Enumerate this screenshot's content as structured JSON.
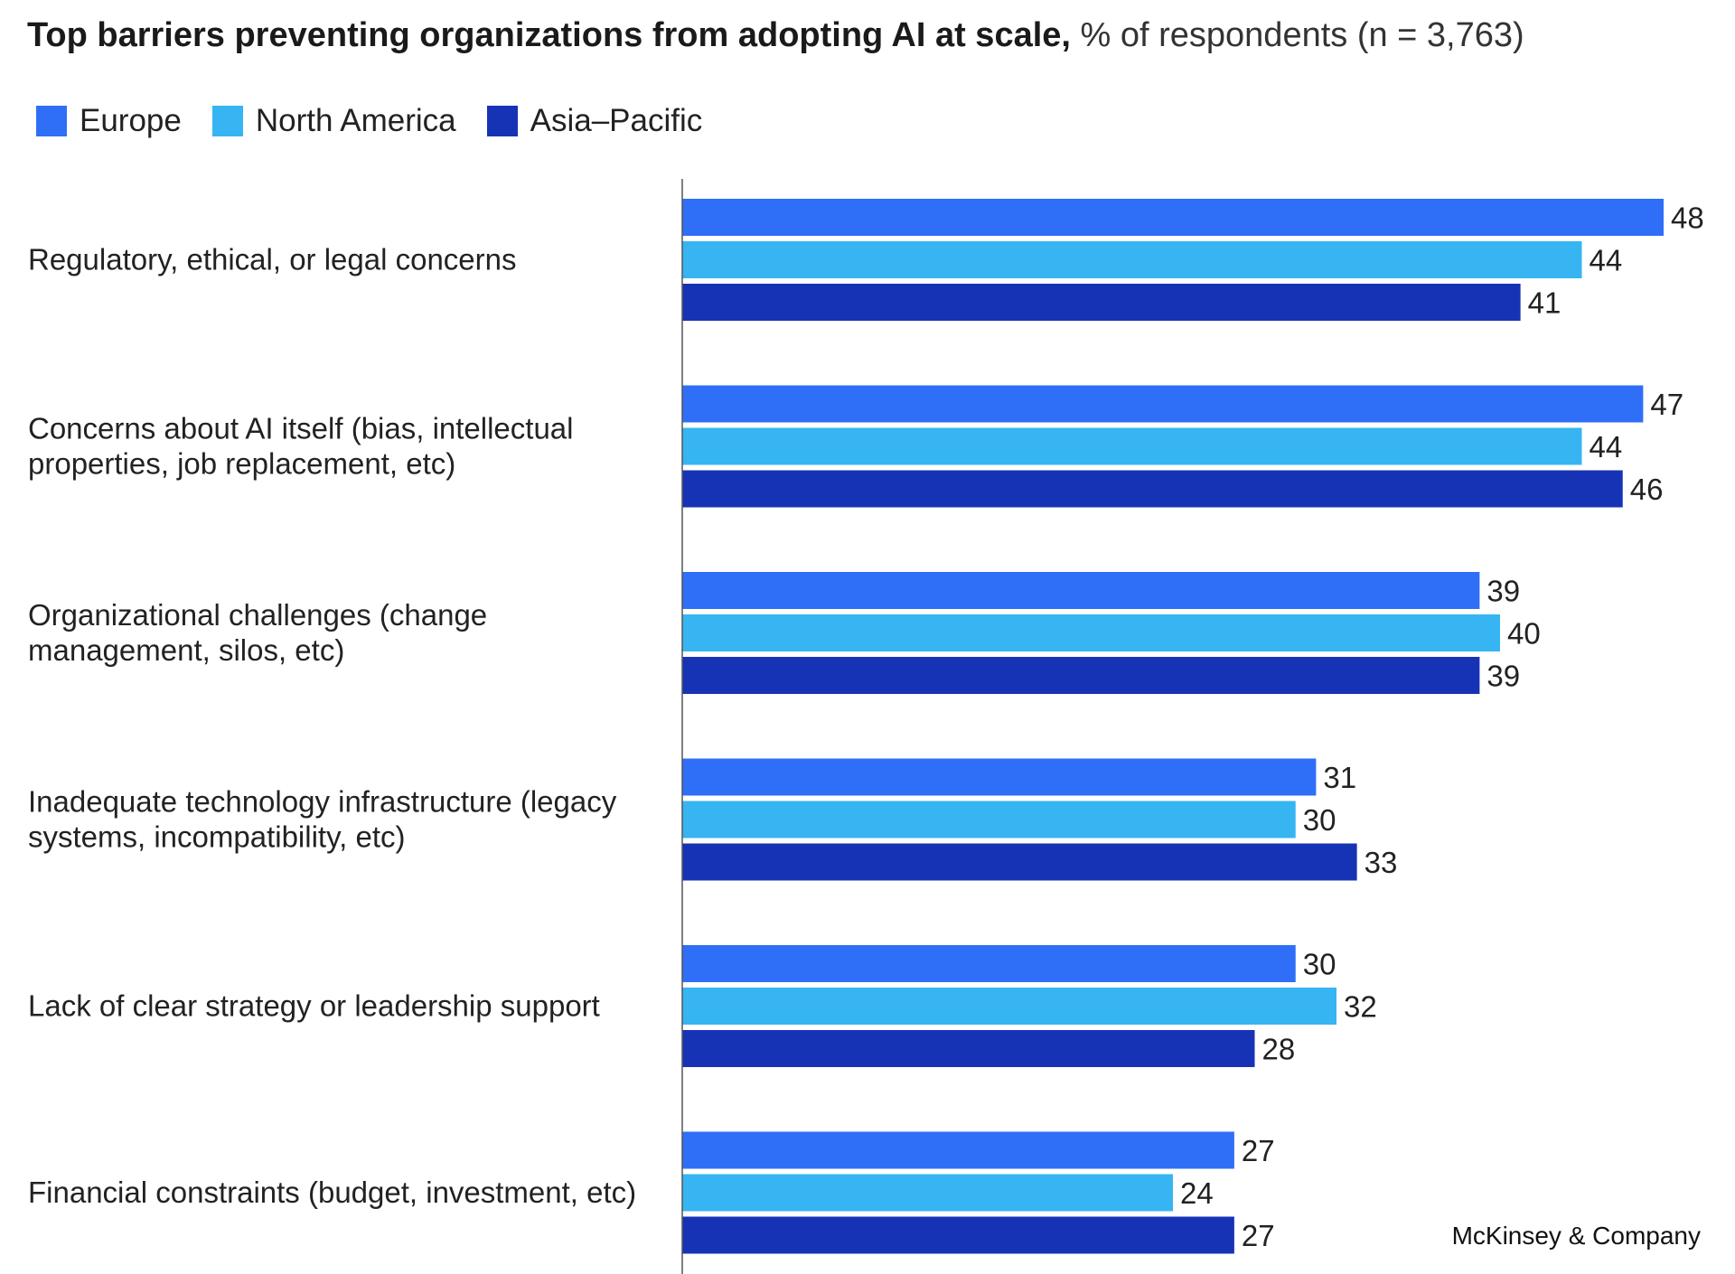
{
  "title_bold": "Top barriers preventing organizations from adopting AI at scale,",
  "title_rest": " % of respondents (n = 3,763)",
  "source": "McKinsey & Company",
  "colors": {
    "europe": "#2f6ff7",
    "north_america": "#36b5f2",
    "asia_pacific": "#1733b5"
  },
  "chart_data": {
    "type": "bar",
    "orientation": "horizontal",
    "title": "Top barriers preventing organizations from adopting AI at scale, % of respondents (n = 3,763)",
    "categories": [
      [
        "Regulatory, ethical, or legal concerns"
      ],
      [
        "Concerns about AI itself (bias, intellectual",
        "properties, job replacement, etc)"
      ],
      [
        "Organizational challenges (change",
        "management, silos, etc)"
      ],
      [
        "Inadequate technology infrastructure (legacy",
        "systems, incompatibility, etc)"
      ],
      [
        "Lack of clear strategy or leadership support"
      ],
      [
        "Financial constraints (budget, investment, etc)"
      ]
    ],
    "series": [
      {
        "name": "Europe",
        "color": "#2f6ff7",
        "values": [
          48,
          47,
          39,
          31,
          30,
          27
        ]
      },
      {
        "name": "North America",
        "color": "#36b5f2",
        "values": [
          44,
          44,
          40,
          30,
          32,
          24
        ]
      },
      {
        "name": "Asia–Pacific",
        "color": "#1733b5",
        "values": [
          41,
          46,
          39,
          33,
          28,
          27
        ]
      }
    ],
    "legend_position": "top-left",
    "xlim": [
      0,
      48
    ],
    "xlabel": "",
    "ylabel": ""
  }
}
